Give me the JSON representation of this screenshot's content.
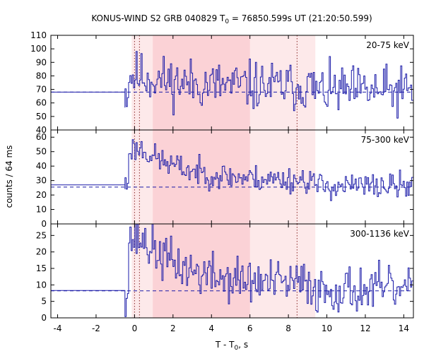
{
  "chart_data": {
    "type": "line",
    "title": {
      "main": "KONUS-WIND S2 GRB 040829 T",
      "sub": "0",
      "rest": " = 76850.599s UT (21:20:50.599)"
    },
    "xlabel": {
      "main": "T - T",
      "sub": "0",
      "rest": ", s"
    },
    "ylabel": "counts / 64 ms",
    "xlim": [
      -4.35,
      14.5
    ],
    "x_ticks": [
      -4,
      -2,
      0,
      2,
      4,
      6,
      8,
      10,
      12,
      14
    ],
    "x_tick_labels": [
      "-4",
      "-2",
      "0",
      "2",
      "4",
      "6",
      "8",
      "10",
      "12",
      "14"
    ],
    "bin_width_s": 0.064,
    "line_color": "#1a1aa8",
    "shaded_regions": [
      {
        "from": -0.15,
        "to": 9.4,
        "color": "#fde9ea"
      },
      {
        "from": 0.95,
        "to": 6.0,
        "color": "#fbd2d6"
      }
    ],
    "vertical_markers": [
      0.0,
      0.256,
      8.45
    ],
    "panels": [
      {
        "label": "20-75 keV",
        "ylim": [
          40,
          110
        ],
        "y_ticks": [
          40,
          50,
          60,
          70,
          80,
          90,
          100,
          110
        ],
        "background": 68,
        "pre_level": 68,
        "peak": 80,
        "decay_to": 72,
        "noise": 9,
        "seed": 11
      },
      {
        "label": "75-300 keV",
        "ylim": [
          0,
          65
        ],
        "y_ticks": [
          0,
          10,
          20,
          30,
          40,
          50,
          60
        ],
        "background": 25.5,
        "pre_level": 27,
        "peak": 52,
        "decay_to": 30,
        "noise": 4.5,
        "seed": 23
      },
      {
        "label": "300-1136 keV",
        "ylim": [
          0,
          28.5
        ],
        "y_ticks": [
          0,
          5,
          10,
          15,
          20,
          25
        ],
        "background": 8.2,
        "pre_level": 8.3,
        "peak": 24,
        "decay_to": 10,
        "noise": 3.5,
        "seed": 37
      }
    ]
  }
}
